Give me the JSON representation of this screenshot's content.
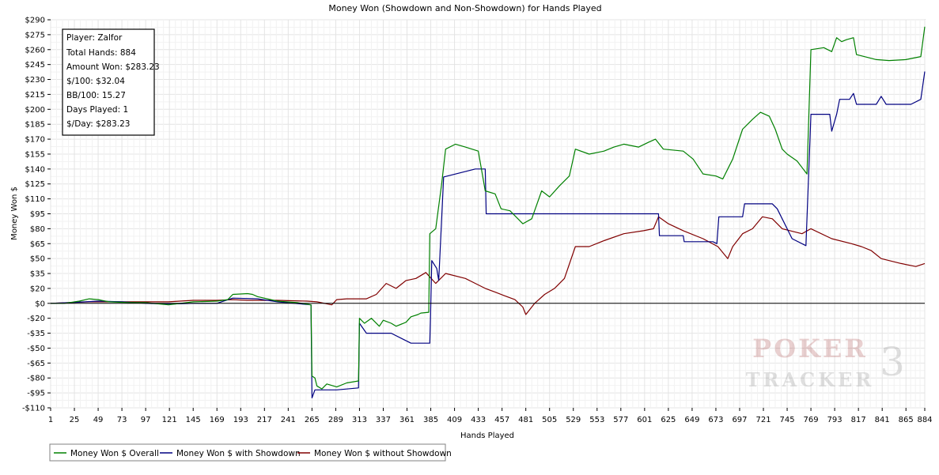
{
  "chart_data": {
    "type": "line",
    "title": "Money Won (Showdown and Non-Showdown) for Hands Played",
    "xlabel": "Hands Played",
    "ylabel": "Money Won $",
    "xlim": [
      1,
      884
    ],
    "ylim": [
      -110,
      290
    ],
    "grid": true,
    "legend_position": "bottom-left",
    "x_ticks": [
      1,
      25,
      49,
      73,
      97,
      121,
      145,
      169,
      193,
      217,
      241,
      265,
      289,
      313,
      337,
      361,
      385,
      409,
      433,
      457,
      481,
      505,
      529,
      553,
      577,
      601,
      625,
      649,
      673,
      697,
      721,
      745,
      769,
      793,
      817,
      841,
      865,
      884
    ],
    "y_ticks": [
      290,
      275,
      260,
      245,
      230,
      215,
      200,
      185,
      170,
      155,
      140,
      125,
      110,
      95,
      80,
      65,
      50,
      35,
      20,
      0,
      -20,
      -35,
      -50,
      -65,
      -80,
      -95,
      -110
    ],
    "y_tick_labels": [
      "$290",
      "$275",
      "$260",
      "$245",
      "$230",
      "$215",
      "$200",
      "$185",
      "$170",
      "$155",
      "$140",
      "$125",
      "$110",
      "$95",
      "$80",
      "$65",
      "$50",
      "$35",
      "$20",
      "$0",
      "-$20",
      "-$35",
      "-$50",
      "-$65",
      "-$80",
      "-$95",
      "-$110"
    ],
    "series": [
      {
        "name": "Money Won $ Overall",
        "color": "#008000",
        "points": [
          [
            1,
            0
          ],
          [
            15,
            0
          ],
          [
            30,
            3
          ],
          [
            40,
            6
          ],
          [
            49,
            5
          ],
          [
            60,
            2
          ],
          [
            80,
            1
          ],
          [
            97,
            1
          ],
          [
            120,
            -2
          ],
          [
            145,
            2
          ],
          [
            169,
            3
          ],
          [
            180,
            5
          ],
          [
            185,
            12
          ],
          [
            200,
            13
          ],
          [
            205,
            12
          ],
          [
            210,
            9
          ],
          [
            230,
            3
          ],
          [
            250,
            1
          ],
          [
            264,
            -2
          ],
          [
            265,
            -78
          ],
          [
            268,
            -80
          ],
          [
            270,
            -88
          ],
          [
            275,
            -91
          ],
          [
            280,
            -86
          ],
          [
            290,
            -89
          ],
          [
            300,
            -85
          ],
          [
            312,
            -83
          ],
          [
            313,
            -20
          ],
          [
            318,
            -25
          ],
          [
            325,
            -20
          ],
          [
            333,
            -28
          ],
          [
            337,
            -22
          ],
          [
            345,
            -25
          ],
          [
            350,
            -28
          ],
          [
            360,
            -24
          ],
          [
            365,
            -18
          ],
          [
            372,
            -15
          ],
          [
            375,
            -13
          ],
          [
            383,
            -12
          ],
          [
            384,
            75
          ],
          [
            390,
            80
          ],
          [
            396,
            125
          ],
          [
            400,
            160
          ],
          [
            410,
            165
          ],
          [
            420,
            162
          ],
          [
            433,
            158
          ],
          [
            440,
            118
          ],
          [
            450,
            115
          ],
          [
            456,
            100
          ],
          [
            465,
            98
          ],
          [
            478,
            85
          ],
          [
            487,
            90
          ],
          [
            497,
            118
          ],
          [
            505,
            112
          ],
          [
            515,
            123
          ],
          [
            525,
            133
          ],
          [
            531,
            160
          ],
          [
            545,
            155
          ],
          [
            560,
            158
          ],
          [
            570,
            162
          ],
          [
            580,
            165
          ],
          [
            595,
            162
          ],
          [
            605,
            167
          ],
          [
            612,
            170
          ],
          [
            620,
            160
          ],
          [
            640,
            158
          ],
          [
            650,
            150
          ],
          [
            660,
            135
          ],
          [
            673,
            133
          ],
          [
            680,
            130
          ],
          [
            690,
            150
          ],
          [
            700,
            180
          ],
          [
            710,
            190
          ],
          [
            718,
            197
          ],
          [
            727,
            193
          ],
          [
            733,
            180
          ],
          [
            740,
            160
          ],
          [
            745,
            155
          ],
          [
            755,
            148
          ],
          [
            765,
            135
          ],
          [
            769,
            260
          ],
          [
            782,
            262
          ],
          [
            790,
            258
          ],
          [
            795,
            272
          ],
          [
            800,
            268
          ],
          [
            805,
            270
          ],
          [
            812,
            272
          ],
          [
            815,
            255
          ],
          [
            835,
            250
          ],
          [
            848,
            249
          ],
          [
            865,
            250
          ],
          [
            880,
            253
          ],
          [
            884,
            283
          ]
        ]
      },
      {
        "name": "Money Won $ with Showdown",
        "color": "#000080",
        "points": [
          [
            1,
            0
          ],
          [
            20,
            1
          ],
          [
            49,
            3
          ],
          [
            73,
            2
          ],
          [
            97,
            0
          ],
          [
            120,
            -1
          ],
          [
            145,
            0
          ],
          [
            169,
            0
          ],
          [
            185,
            7
          ],
          [
            210,
            6
          ],
          [
            230,
            2
          ],
          [
            264,
            -2
          ],
          [
            265,
            -100
          ],
          [
            268,
            -92
          ],
          [
            290,
            -92
          ],
          [
            312,
            -90
          ],
          [
            313,
            -25
          ],
          [
            320,
            -35
          ],
          [
            345,
            -35
          ],
          [
            365,
            -45
          ],
          [
            384,
            -45
          ],
          [
            385,
            -5
          ],
          [
            386,
            48
          ],
          [
            391,
            40
          ],
          [
            393,
            28
          ],
          [
            398,
            132
          ],
          [
            430,
            140
          ],
          [
            440,
            140
          ],
          [
            441,
            95
          ],
          [
            460,
            95
          ],
          [
            520,
            95
          ],
          [
            560,
            95
          ],
          [
            600,
            95
          ],
          [
            615,
            95
          ],
          [
            616,
            73
          ],
          [
            640,
            73
          ],
          [
            641,
            67
          ],
          [
            670,
            67
          ],
          [
            674,
            65
          ],
          [
            676,
            92
          ],
          [
            700,
            92
          ],
          [
            702,
            105
          ],
          [
            730,
            105
          ],
          [
            735,
            100
          ],
          [
            750,
            70
          ],
          [
            764,
            63
          ],
          [
            769,
            195
          ],
          [
            788,
            195
          ],
          [
            790,
            178
          ],
          [
            795,
            195
          ],
          [
            798,
            210
          ],
          [
            808,
            210
          ],
          [
            812,
            216
          ],
          [
            815,
            205
          ],
          [
            835,
            205
          ],
          [
            840,
            213
          ],
          [
            845,
            205
          ],
          [
            870,
            205
          ],
          [
            880,
            210
          ],
          [
            884,
            238
          ]
        ]
      },
      {
        "name": "Money Won $ without Showdown",
        "color": "#800000",
        "points": [
          [
            1,
            0
          ],
          [
            40,
            2
          ],
          [
            73,
            2
          ],
          [
            97,
            2
          ],
          [
            120,
            2
          ],
          [
            145,
            4
          ],
          [
            169,
            4
          ],
          [
            185,
            5
          ],
          [
            200,
            4
          ],
          [
            230,
            4
          ],
          [
            260,
            3
          ],
          [
            270,
            2
          ],
          [
            285,
            -2
          ],
          [
            290,
            5
          ],
          [
            300,
            6
          ],
          [
            320,
            6
          ],
          [
            330,
            12
          ],
          [
            340,
            25
          ],
          [
            350,
            20
          ],
          [
            360,
            28
          ],
          [
            370,
            30
          ],
          [
            380,
            36
          ],
          [
            390,
            25
          ],
          [
            400,
            35
          ],
          [
            420,
            30
          ],
          [
            430,
            25
          ],
          [
            440,
            20
          ],
          [
            450,
            15
          ],
          [
            460,
            10
          ],
          [
            470,
            5
          ],
          [
            478,
            -5
          ],
          [
            481,
            -15
          ],
          [
            490,
            0
          ],
          [
            500,
            12
          ],
          [
            510,
            20
          ],
          [
            520,
            30
          ],
          [
            531,
            62
          ],
          [
            545,
            62
          ],
          [
            560,
            68
          ],
          [
            580,
            75
          ],
          [
            600,
            78
          ],
          [
            610,
            80
          ],
          [
            615,
            92
          ],
          [
            625,
            85
          ],
          [
            640,
            78
          ],
          [
            660,
            70
          ],
          [
            675,
            62
          ],
          [
            685,
            50
          ],
          [
            690,
            62
          ],
          [
            700,
            75
          ],
          [
            710,
            80
          ],
          [
            720,
            92
          ],
          [
            730,
            90
          ],
          [
            740,
            80
          ],
          [
            760,
            75
          ],
          [
            769,
            80
          ],
          [
            790,
            70
          ],
          [
            810,
            65
          ],
          [
            820,
            62
          ],
          [
            830,
            58
          ],
          [
            840,
            50
          ],
          [
            860,
            45
          ],
          [
            875,
            42
          ],
          [
            884,
            45
          ]
        ]
      }
    ],
    "info_box": {
      "player": "Player: Zalfor",
      "total_hands": "Total Hands: 884",
      "amount_won": "Amount Won: $283.23",
      "per_100": "$/100: $32.04",
      "bb_per_100": "BB/100: 15.27",
      "days_played": "Days Played: 1",
      "per_day": "$/Day: $283.23"
    },
    "watermark": {
      "top": "POKER",
      "bottom": "TRACKER",
      "numeral": "3"
    }
  }
}
